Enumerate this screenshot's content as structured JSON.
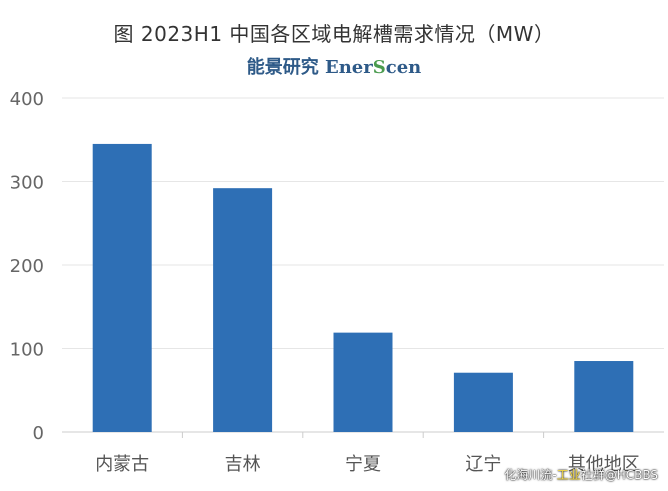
{
  "chart_data": {
    "type": "bar",
    "title": "图  2023H1 中国各区域电解槽需求情况（MW）",
    "brand": {
      "pre": "能景研究 Ener",
      "hl": "S",
      "post": "cen"
    },
    "categories": [
      "内蒙古",
      "吉林",
      "宁夏",
      "辽宁",
      "其他地区"
    ],
    "values": [
      345,
      292,
      119,
      71,
      85
    ],
    "ylim": [
      0,
      400
    ],
    "yticks": [
      0,
      100,
      200,
      300,
      400
    ],
    "grid": true,
    "bar_color": "#2e6fb5"
  },
  "watermark": {
    "pre": "化海川流-",
    "hl": "工业",
    "post": "社群@HCBBS"
  }
}
